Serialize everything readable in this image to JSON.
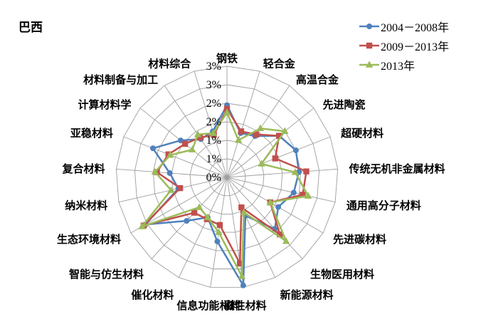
{
  "chart_data": {
    "type": "radar",
    "title": "巴西",
    "axis_max": 3,
    "rings": 6,
    "tick_labels_outer_to_center": [
      "3%",
      "3%",
      "2%",
      "2%",
      "1%",
      "1%",
      "0%"
    ],
    "grid_color": "#9e9e9e",
    "legend_position": "top-right",
    "categories": [
      "钢铁",
      "轻合金",
      "高温合金",
      "先进陶瓷",
      "超硬材料",
      "传统无机非金属材料",
      "通用高分子材料",
      "先进碳材料",
      "生物医用材料",
      "新能源材料",
      "磁性材料",
      "信息功能材料",
      "催化材料",
      "智能与仿生材料",
      "生态环境材料",
      "纳米材料",
      "复合材料",
      "亚稳材料",
      "计算材料学",
      "材料制备与加工",
      "材料综合"
    ],
    "series": [
      {
        "name": "2004－2008年",
        "color": "#4F81BD",
        "marker": "circle",
        "values": [
          1.95,
          1.25,
          1.35,
          1.8,
          2.0,
          1.95,
          1.85,
          1.6,
          1.9,
          1.15,
          2.95,
          1.75,
          1.2,
          1.6,
          2.55,
          1.35,
          1.55,
          2.15,
          1.6,
          1.25,
          1.3
        ]
      },
      {
        "name": "2009－2013年",
        "color": "#C0504D",
        "marker": "square",
        "values": [
          1.85,
          1.3,
          1.4,
          1.8,
          1.4,
          2.15,
          2.1,
          1.35,
          2.1,
          0.9,
          2.35,
          1.3,
          1.25,
          1.3,
          2.6,
          1.3,
          1.9,
          1.7,
          1.45,
          1.3,
          1.2
        ]
      },
      {
        "name": "2013年",
        "color": "#9BBB59",
        "marker": "triangle",
        "values": [
          1.75,
          1.05,
          1.6,
          2.0,
          1.0,
          1.85,
          2.25,
          1.35,
          2.35,
          1.05,
          2.7,
          1.5,
          1.2,
          1.1,
          2.65,
          1.55,
          1.95,
          1.65,
          1.2,
          1.4,
          1.25
        ]
      }
    ]
  }
}
